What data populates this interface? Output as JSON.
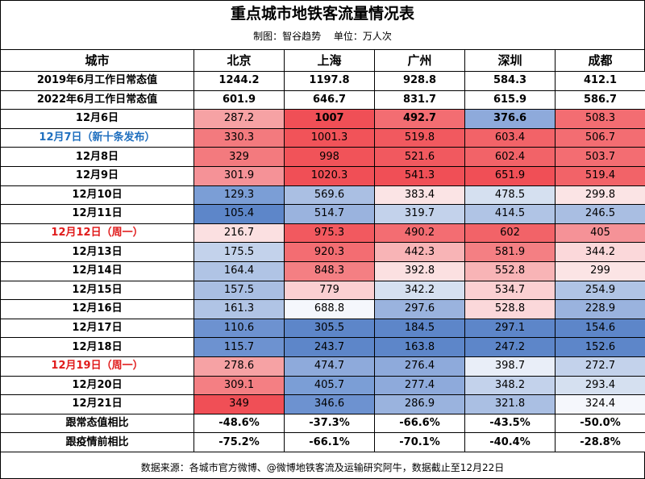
{
  "title": "重点城市地铁客流量情况表",
  "subtitle": {
    "maker": "制图：智谷趋势",
    "unit": "单位：万人次"
  },
  "columns": [
    "城市",
    "北京",
    "上海",
    "广州",
    "深圳",
    "成都"
  ],
  "rows": [
    {
      "label": "2019年6月工作日常态值",
      "label_color": "normal",
      "values": [
        "1244.2",
        "1197.8",
        "928.8",
        "584.3",
        "412.1"
      ],
      "colors": [
        "#ffffff",
        "#ffffff",
        "#ffffff",
        "#ffffff",
        "#ffffff"
      ],
      "bold": true
    },
    {
      "label": "2022年6月工作日常态值",
      "label_color": "normal",
      "values": [
        "601.9",
        "646.7",
        "831.7",
        "615.9",
        "586.7"
      ],
      "colors": [
        "#ffffff",
        "#ffffff",
        "#ffffff",
        "#ffffff",
        "#ffffff"
      ],
      "bold": true
    },
    {
      "label": "12月6日",
      "label_color": "normal",
      "values": [
        "287.2",
        "1007",
        "492.7",
        "376.6",
        "508.3"
      ],
      "colors": [
        "#f6a2a4",
        "#f04f56",
        "#f36d72",
        "#8eaadb",
        "#f36d72"
      ],
      "bold_cells": [
        false,
        true,
        true,
        true,
        false
      ]
    },
    {
      "label": "12月7日（新十条发布）",
      "label_color": "blue",
      "values": [
        "330.3",
        "1001.3",
        "519.8",
        "603.4",
        "506.7"
      ],
      "colors": [
        "#f37a7e",
        "#f15359",
        "#f1595f",
        "#f26368",
        "#f36d72"
      ]
    },
    {
      "label": "12月8日",
      "label_color": "normal",
      "values": [
        "329",
        "998",
        "521.6",
        "602.4",
        "503.7"
      ],
      "colors": [
        "#f37a7e",
        "#f15359",
        "#f1595f",
        "#f26368",
        "#f36d72"
      ]
    },
    {
      "label": "12月9日",
      "label_color": "normal",
      "values": [
        "301.9",
        "1020.3",
        "541.3",
        "651.9",
        "519.4"
      ],
      "colors": [
        "#f59297",
        "#f04f56",
        "#f04f56",
        "#f04f56",
        "#f26368"
      ]
    },
    {
      "label": "12月10日",
      "label_color": "normal",
      "values": [
        "129.3",
        "569.6",
        "383.4",
        "478.5",
        "299.8"
      ],
      "colors": [
        "#7b9ed6",
        "#aabfe3",
        "#fbe4e5",
        "#d5e0f0",
        "#fbe4e5"
      ]
    },
    {
      "label": "12月11日",
      "label_color": "normal",
      "values": [
        "105.4",
        "514.7",
        "319.7",
        "414.5",
        "246.5"
      ],
      "colors": [
        "#5d86c9",
        "#9ab3de",
        "#c3d2eb",
        "#b0c4e5",
        "#a9bee2"
      ]
    },
    {
      "label": "12月12日（周一）",
      "label_color": "red",
      "values": [
        "216.7",
        "975.3",
        "490.2",
        "602",
        "405"
      ],
      "colors": [
        "#fbe0e1",
        "#f2595f",
        "#f36d72",
        "#f26368",
        "#f59297"
      ]
    },
    {
      "label": "12月13日",
      "label_color": "normal",
      "values": [
        "175.5",
        "920.3",
        "442.3",
        "581.9",
        "344.2"
      ],
      "colors": [
        "#c3d2eb",
        "#f36d72",
        "#f8b4b6",
        "#f47f83",
        "#fbd8da"
      ]
    },
    {
      "label": "12月14日",
      "label_color": "normal",
      "values": [
        "164.4",
        "848.3",
        "392.8",
        "552.8",
        "299"
      ],
      "colors": [
        "#b0c4e5",
        "#f47f83",
        "#fbe0e1",
        "#f8b4b6",
        "#fbe4e5"
      ]
    },
    {
      "label": "12月15日",
      "label_color": "normal",
      "values": [
        "157.5",
        "779",
        "342.2",
        "534.7",
        "254.9"
      ],
      "colors": [
        "#a9bee2",
        "#fbd0d2",
        "#d5e0f0",
        "#fbd0d2",
        "#b0c4e5"
      ]
    },
    {
      "label": "12月16日",
      "label_color": "normal",
      "values": [
        "161.3",
        "688.8",
        "297.6",
        "528.8",
        "228.9"
      ],
      "colors": [
        "#b0c4e5",
        "#f5f7fc",
        "#9ab3de",
        "#fbd8da",
        "#9ab3de"
      ]
    },
    {
      "label": "12月17日",
      "label_color": "normal",
      "values": [
        "110.6",
        "305.5",
        "184.5",
        "297.1",
        "154.6"
      ],
      "colors": [
        "#6d92d0",
        "#5d86c9",
        "#5d86c9",
        "#5d86c9",
        "#5d86c9"
      ]
    },
    {
      "label": "12月18日",
      "label_color": "normal",
      "values": [
        "115.7",
        "243.7",
        "163.8",
        "247.2",
        "152.6"
      ],
      "colors": [
        "#6d92d0",
        "#5d86c9",
        "#5d86c9",
        "#5d86c9",
        "#5d86c9"
      ]
    },
    {
      "label": "12月19日（周一）",
      "label_color": "red",
      "values": [
        "278.6",
        "474.7",
        "276.4",
        "398.7",
        "272.7"
      ],
      "colors": [
        "#f6a2a4",
        "#8eaadb",
        "#8eaadb",
        "#e9eef8",
        "#c3d2eb"
      ]
    },
    {
      "label": "12月20日",
      "label_color": "normal",
      "values": [
        "309.1",
        "405.7",
        "277.4",
        "348.2",
        "293.4"
      ],
      "colors": [
        "#f47f83",
        "#7b9ed6",
        "#8eaadb",
        "#c3d2eb",
        "#d5e0f0"
      ]
    },
    {
      "label": "12月21日",
      "label_color": "normal",
      "values": [
        "349",
        "346.6",
        "286.9",
        "321.8",
        "324.4"
      ],
      "colors": [
        "#f04f56",
        "#6d92d0",
        "#9ab3de",
        "#aabfe3",
        "#f5f7fc"
      ]
    },
    {
      "label": "跟常态值相比",
      "label_color": "normal",
      "values": [
        "-48.6%",
        "-37.3%",
        "-66.6%",
        "-43.5%",
        "-50.0%"
      ],
      "colors": [
        "#ffffff",
        "#ffffff",
        "#ffffff",
        "#ffffff",
        "#ffffff"
      ],
      "bold": true
    },
    {
      "label": "跟疫情前相比",
      "label_color": "normal",
      "values": [
        "-75.2%",
        "-66.1%",
        "-70.1%",
        "-40.4%",
        "-28.8%"
      ],
      "colors": [
        "#ffffff",
        "#ffffff",
        "#ffffff",
        "#ffffff",
        "#ffffff"
      ],
      "bold": true
    }
  ],
  "source": "数据来源：各城市官方微博、@微博地铁客流及运输研究阿牛，数据截止至12月22日"
}
